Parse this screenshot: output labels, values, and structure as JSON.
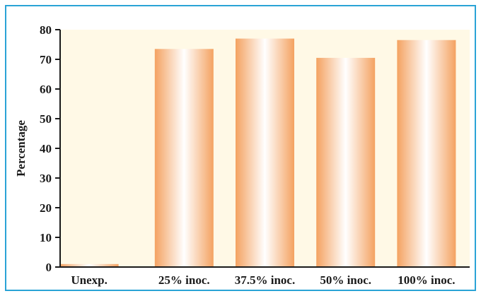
{
  "chart_data": {
    "type": "bar",
    "title": "",
    "xlabel": "",
    "ylabel": "Percentage",
    "ylim": [
      0,
      80
    ],
    "yticks": [
      0,
      10,
      20,
      30,
      40,
      50,
      60,
      70,
      80
    ],
    "categories": [
      "Unexp.",
      "25% inoc.",
      "37.5% inoc.",
      "50% inoc.",
      "100% inoc."
    ],
    "values": [
      1,
      73.5,
      77,
      70.5,
      76.5
    ],
    "grid": false,
    "legend": "none",
    "colors": {
      "frame_border": "#2aa3d6",
      "plot_background": "#fff9e6",
      "bar_edge": "#f4a261",
      "bar_highlight": "#ffffff",
      "axis": "#1a1a1a"
    }
  }
}
